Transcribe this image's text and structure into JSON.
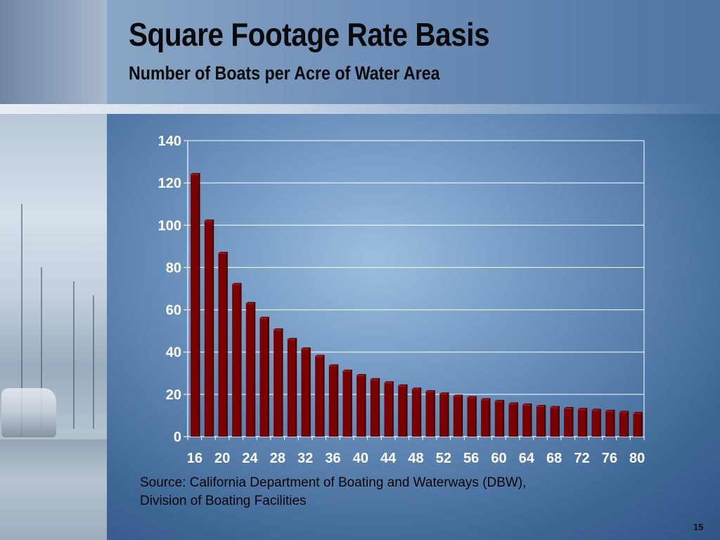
{
  "slide": {
    "title": "Square Footage Rate Basis",
    "subtitle": "Number of Boats per Acre of Water Area",
    "source_line1": "Source: California Department of Boating and Waterways (DBW),",
    "source_line2": "Division of Boating Facilities",
    "page_number": "15"
  },
  "chart_data": {
    "type": "bar",
    "title": "",
    "xlabel": "",
    "ylabel": "",
    "x": [
      16,
      18,
      20,
      22,
      24,
      26,
      28,
      30,
      32,
      34,
      36,
      38,
      40,
      42,
      44,
      46,
      48,
      50,
      52,
      54,
      56,
      58,
      60,
      62,
      64,
      66,
      68,
      70,
      72,
      74,
      76,
      78,
      80
    ],
    "x_tick_labels": [
      "16",
      "20",
      "24",
      "28",
      "32",
      "36",
      "40",
      "44",
      "48",
      "52",
      "56",
      "60",
      "64",
      "68",
      "72",
      "76",
      "80"
    ],
    "values": [
      124,
      102,
      86.7,
      72,
      63,
      56,
      50.5,
      46,
      41.5,
      38,
      33.5,
      31,
      28.9,
      27,
      25.5,
      24,
      22.5,
      21.3,
      20.2,
      19.2,
      18.5,
      17.5,
      16.7,
      15.5,
      15,
      14.3,
      13.8,
      13.3,
      12.9,
      12.5,
      12,
      11.5,
      11
    ],
    "ylim": [
      0,
      140
    ],
    "y_ticks": [
      0,
      20,
      40,
      60,
      80,
      100,
      120,
      140
    ],
    "grid": true,
    "bar_color": "#7a0000",
    "plot_background": "transparent"
  }
}
